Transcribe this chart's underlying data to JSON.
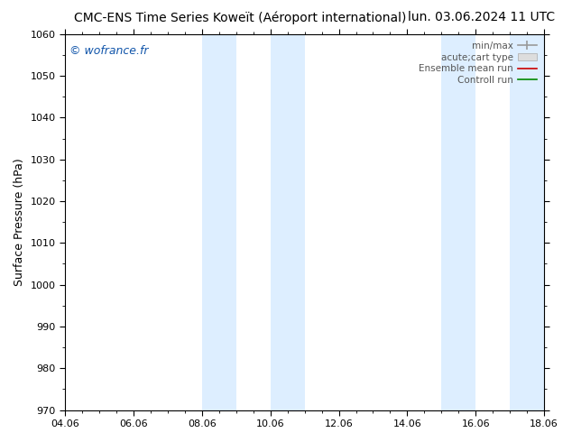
{
  "title": "CMC-ENS Time Series Koweït (Aéroport international)",
  "date_label": "lun. 03.06.2024 11 UTC",
  "ylabel": "Surface Pressure (hPa)",
  "ylim": [
    970,
    1060
  ],
  "yticks": [
    970,
    980,
    990,
    1000,
    1010,
    1020,
    1030,
    1040,
    1050,
    1060
  ],
  "xtick_labels": [
    "04.06",
    "06.06",
    "08.06",
    "10.06",
    "12.06",
    "14.06",
    "16.06",
    "18.06"
  ],
  "xtick_positions": [
    0,
    2,
    4,
    6,
    8,
    10,
    12,
    14
  ],
  "xlim": [
    0,
    14
  ],
  "shaded_regions": [
    {
      "start": 4,
      "end": 5
    },
    {
      "start": 6,
      "end": 7
    },
    {
      "start": 11,
      "end": 12
    },
    {
      "start": 13,
      "end": 14
    }
  ],
  "shaded_color": "#ddeeff",
  "background_color": "#ffffff",
  "plot_bg_color": "#ffffff",
  "watermark": "© wofrance.fr",
  "watermark_color": "#1155aa",
  "title_fontsize": 10,
  "axis_label_fontsize": 9,
  "tick_fontsize": 8,
  "watermark_fontsize": 9,
  "legend_label_color": "#555555",
  "legend_fontsize": 7.5
}
